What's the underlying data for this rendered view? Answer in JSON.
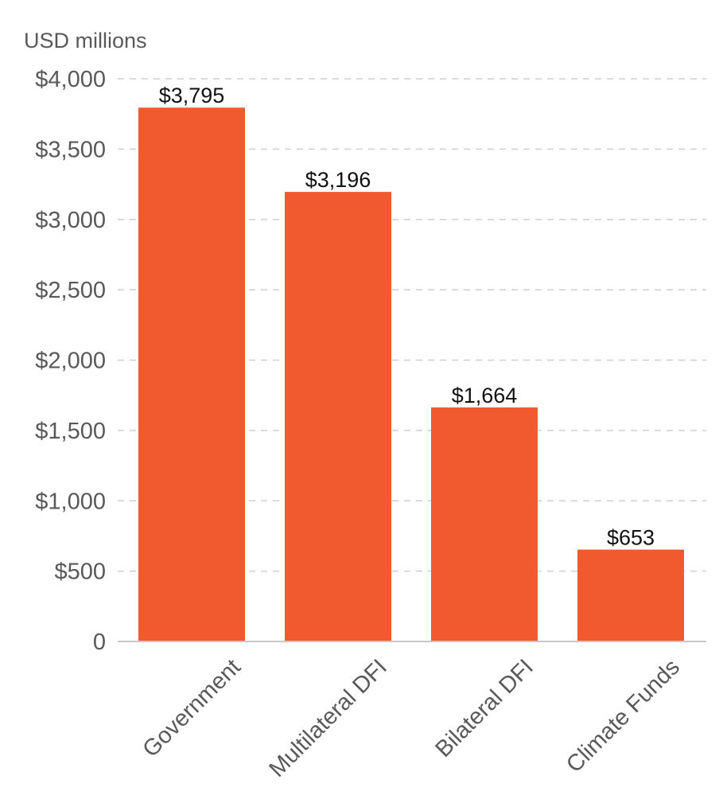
{
  "chart_data": {
    "type": "bar",
    "unit_label": "USD millions",
    "categories": [
      "Government",
      "Multilateral DFI",
      "Bilateral DFI",
      "Climate Funds"
    ],
    "values": [
      3795,
      3196,
      1664,
      653
    ],
    "value_labels": [
      "$3,795",
      "$3,196",
      "$1,664",
      "$653"
    ],
    "y_ticks": [
      0,
      500,
      1000,
      1500,
      2000,
      2500,
      3000,
      3500,
      4000
    ],
    "y_tick_labels": [
      "0",
      "$500",
      "$1,000",
      "$1,500",
      "$2,000",
      "$2,500",
      "$3,000",
      "$3,500",
      "$4,000"
    ],
    "ylim": [
      0,
      4000
    ],
    "grid": true,
    "bar_color": "#f05a2e",
    "title": "",
    "xlabel": "",
    "ylabel": ""
  }
}
